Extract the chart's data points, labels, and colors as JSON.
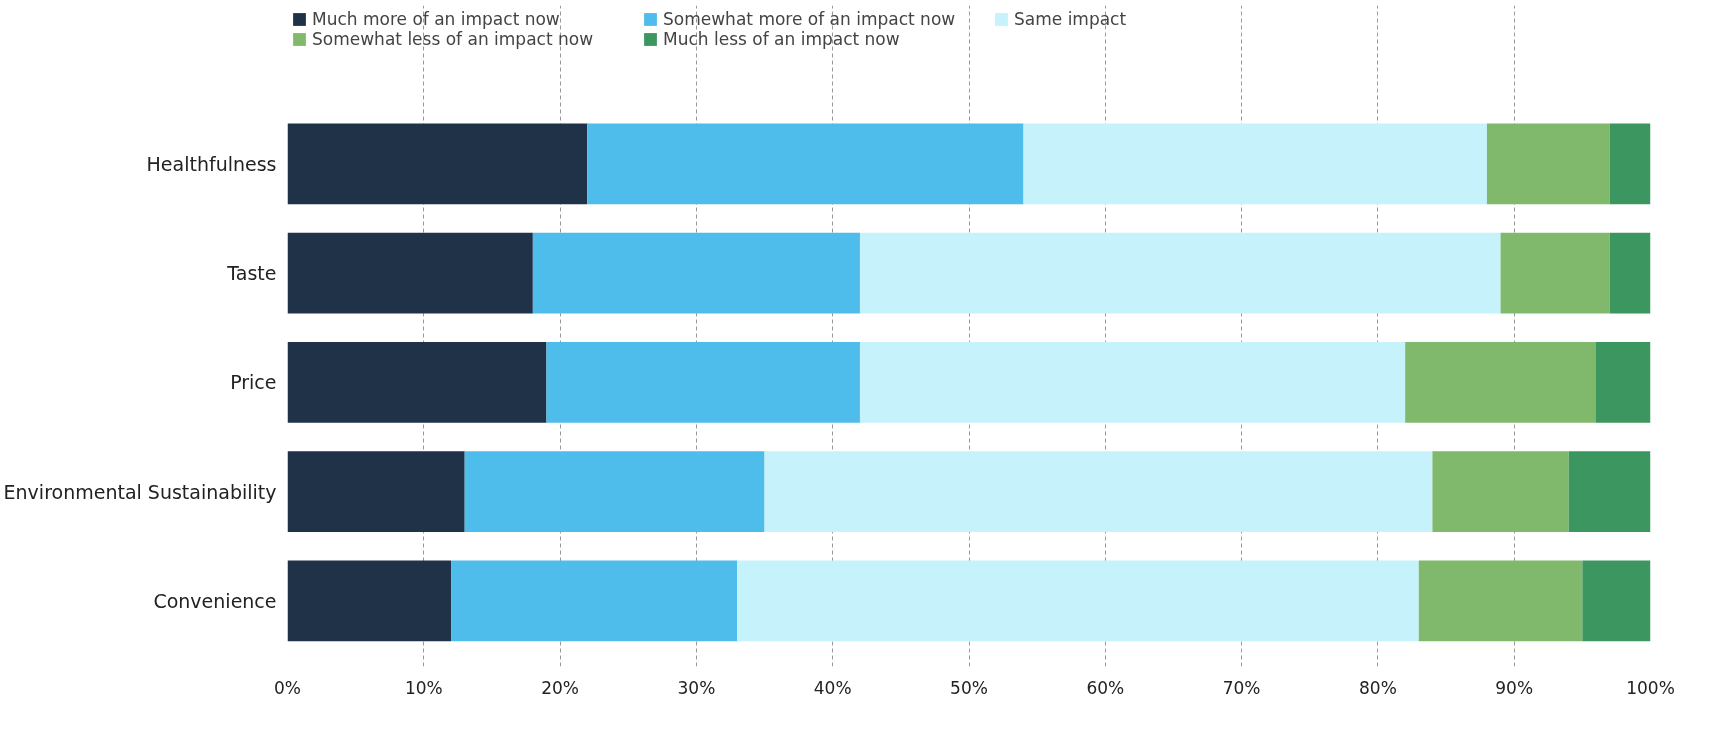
{
  "chart_data": {
    "type": "bar",
    "orientation": "horizontal",
    "stacked": true,
    "categories": [
      "Healthfulness",
      "Taste",
      "Price",
      "Environmental Sustainability",
      "Convenience"
    ],
    "series": [
      {
        "name": "Much more of an impact now",
        "color": "#203248",
        "values": [
          22,
          18,
          19,
          13,
          12
        ]
      },
      {
        "name": "Somewhat more of an impact now",
        "color": "#4fbdeb",
        "values": [
          32,
          24,
          23,
          22,
          21
        ]
      },
      {
        "name": "Same impact",
        "color": "#c5f2fb",
        "values": [
          34,
          47,
          40,
          49,
          50
        ]
      },
      {
        "name": "Somewhat less of an impact now",
        "color": "#80b96c",
        "values": [
          9,
          8,
          14,
          10,
          12
        ]
      },
      {
        "name": "Much less of an impact now",
        "color": "#3c9660",
        "values": [
          3,
          3,
          4,
          6,
          5
        ]
      }
    ],
    "xlim": [
      0,
      100
    ],
    "xticks": [
      {
        "value": 0,
        "label": "0%"
      },
      {
        "value": 10,
        "label": "10%"
      },
      {
        "value": 20,
        "label": "20%"
      },
      {
        "value": 30,
        "label": "30%"
      },
      {
        "value": 40,
        "label": "40%"
      },
      {
        "value": 50,
        "label": "50%"
      },
      {
        "value": 60,
        "label": "60%"
      },
      {
        "value": 70,
        "label": "70%"
      },
      {
        "value": 80,
        "label": "80%"
      },
      {
        "value": 90,
        "label": "90%"
      },
      {
        "value": 100,
        "label": "100%"
      }
    ],
    "grid": "x",
    "legend": "top"
  }
}
